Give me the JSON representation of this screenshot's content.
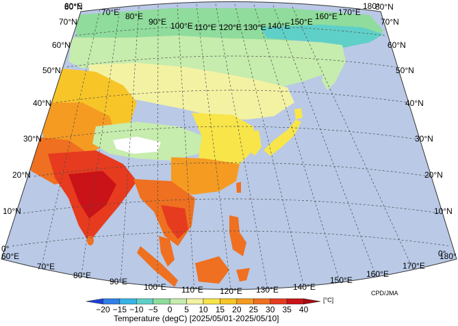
{
  "map": {
    "source_label": "CPD/JMA",
    "unit_label": "[°C]",
    "title": "Temperature (degC) [2025/05/01-2025/05/10]",
    "lon_labels_top": [
      "60°E",
      "70°E",
      "80°E",
      "90°E",
      "100°E",
      "110°E",
      "120°E",
      "130°E",
      "140°E",
      "150°E",
      "160°E",
      "170°E",
      "180°"
    ],
    "lon_labels_bottom": [
      "60°E",
      "70°E",
      "80°E",
      "90°E",
      "100°E",
      "110°E",
      "120°E",
      "130°E",
      "140°E",
      "150°E",
      "160°E",
      "170°E",
      "180°"
    ],
    "lat_labels_left": [
      "80°N",
      "70°N",
      "60°N",
      "50°N",
      "40°N",
      "30°N",
      "20°N",
      "10°N",
      "0°"
    ],
    "lat_labels_right": [
      "80°N",
      "70°N",
      "60°N",
      "50°N",
      "40°N",
      "30°N",
      "20°N",
      "10°N",
      "0°"
    ],
    "colorbar": {
      "tick_labels": [
        "−20",
        "−15",
        "−10",
        "−5",
        "0",
        "5",
        "10",
        "15",
        "20",
        "25",
        "30",
        "35",
        "40"
      ],
      "colors": [
        "#1d3fd6",
        "#2f7fe6",
        "#38b3e6",
        "#5fd0c8",
        "#8fdc9c",
        "#c6ecae",
        "#f3f2a3",
        "#f7e54a",
        "#f7c528",
        "#f59b22",
        "#ef7020",
        "#e63b1f",
        "#c91318",
        "#a40d10"
      ]
    },
    "colors": {
      "ocean": "#b9c9e6",
      "frame": "#333333"
    }
  }
}
